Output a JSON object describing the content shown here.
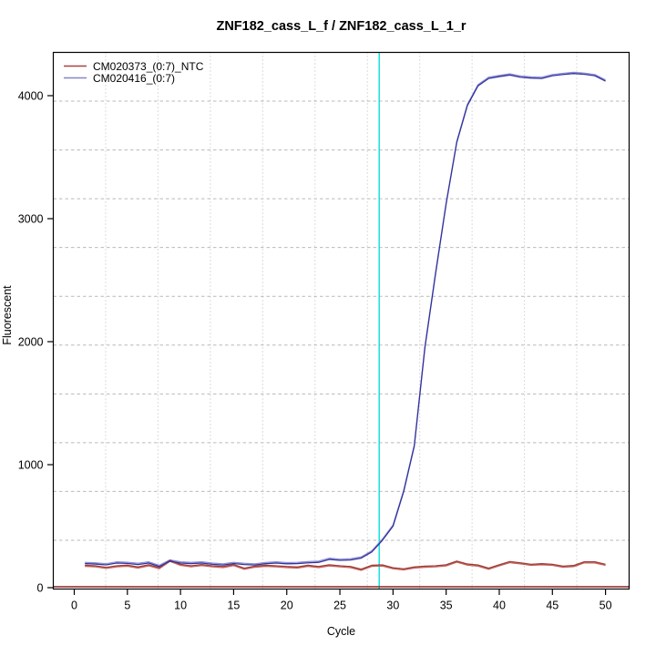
{
  "window": {
    "background_color": "#ffffff"
  },
  "chart_data": {
    "type": "line",
    "title": "ZNF182_cass_L_f / ZNF182_cass_L_1_r",
    "xlabel": "Cycle",
    "ylabel": "Fluorescent",
    "x_ticks": [
      0,
      5,
      10,
      15,
      20,
      25,
      30,
      35,
      40,
      45,
      50
    ],
    "y_ticks": [
      0,
      1000,
      2000,
      3000,
      4000
    ],
    "xlim": [
      -2,
      52
    ],
    "ylim": [
      -11,
      4350
    ],
    "grid": {
      "on": true,
      "divisions": 11,
      "horizontal_style": "dashed",
      "vertical_style": "dotted",
      "color": "#b9b9b9"
    },
    "legend_position": "top-left",
    "threshold_cycle_line": {
      "cycle": 28.7,
      "color": "#00e0e0"
    },
    "zero_line": {
      "value": 0,
      "color": "#8b2020"
    },
    "x": [
      1,
      2,
      3,
      4,
      5,
      6,
      7,
      8,
      9,
      10,
      11,
      12,
      13,
      14,
      15,
      16,
      17,
      18,
      19,
      20,
      21,
      22,
      23,
      24,
      25,
      26,
      27,
      28,
      29,
      30,
      31,
      32,
      33,
      34,
      35,
      36,
      37,
      38,
      39,
      40,
      41,
      42,
      43,
      44,
      45,
      46,
      47,
      48,
      49,
      50
    ],
    "series": [
      {
        "name": "CM020373_(0:7)_NTC",
        "color": "#9e3a34",
        "replicate_shadow_color": "#c0605a",
        "legend_color": "#ae4040",
        "values": [
          182,
          178,
          165,
          178,
          183,
          168,
          186,
          163,
          222,
          190,
          178,
          188,
          178,
          172,
          188,
          158,
          175,
          182,
          178,
          172,
          168,
          182,
          172,
          186,
          178,
          172,
          150,
          182,
          185,
          162,
          153,
          168,
          175,
          178,
          186,
          216,
          192,
          184,
          158,
          186,
          212,
          202,
          190,
          195,
          190,
          175,
          180,
          210,
          210,
          190
        ]
      },
      {
        "name": "CM020416_(0:7)",
        "color": "#32329e",
        "replicate_shadow_color": "#8c8cd2",
        "legend_color": "#8686c8",
        "values": [
          196,
          192,
          185,
          200,
          197,
          188,
          200,
          172,
          216,
          200,
          196,
          200,
          190,
          184,
          196,
          188,
          184,
          195,
          200,
          194,
          196,
          202,
          206,
          230,
          222,
          225,
          240,
          290,
          385,
          500,
          780,
          1150,
          1950,
          2550,
          3120,
          3620,
          3920,
          4080,
          4140,
          4155,
          4168,
          4150,
          4143,
          4140,
          4162,
          4172,
          4180,
          4174,
          4162,
          4118
        ]
      }
    ]
  }
}
